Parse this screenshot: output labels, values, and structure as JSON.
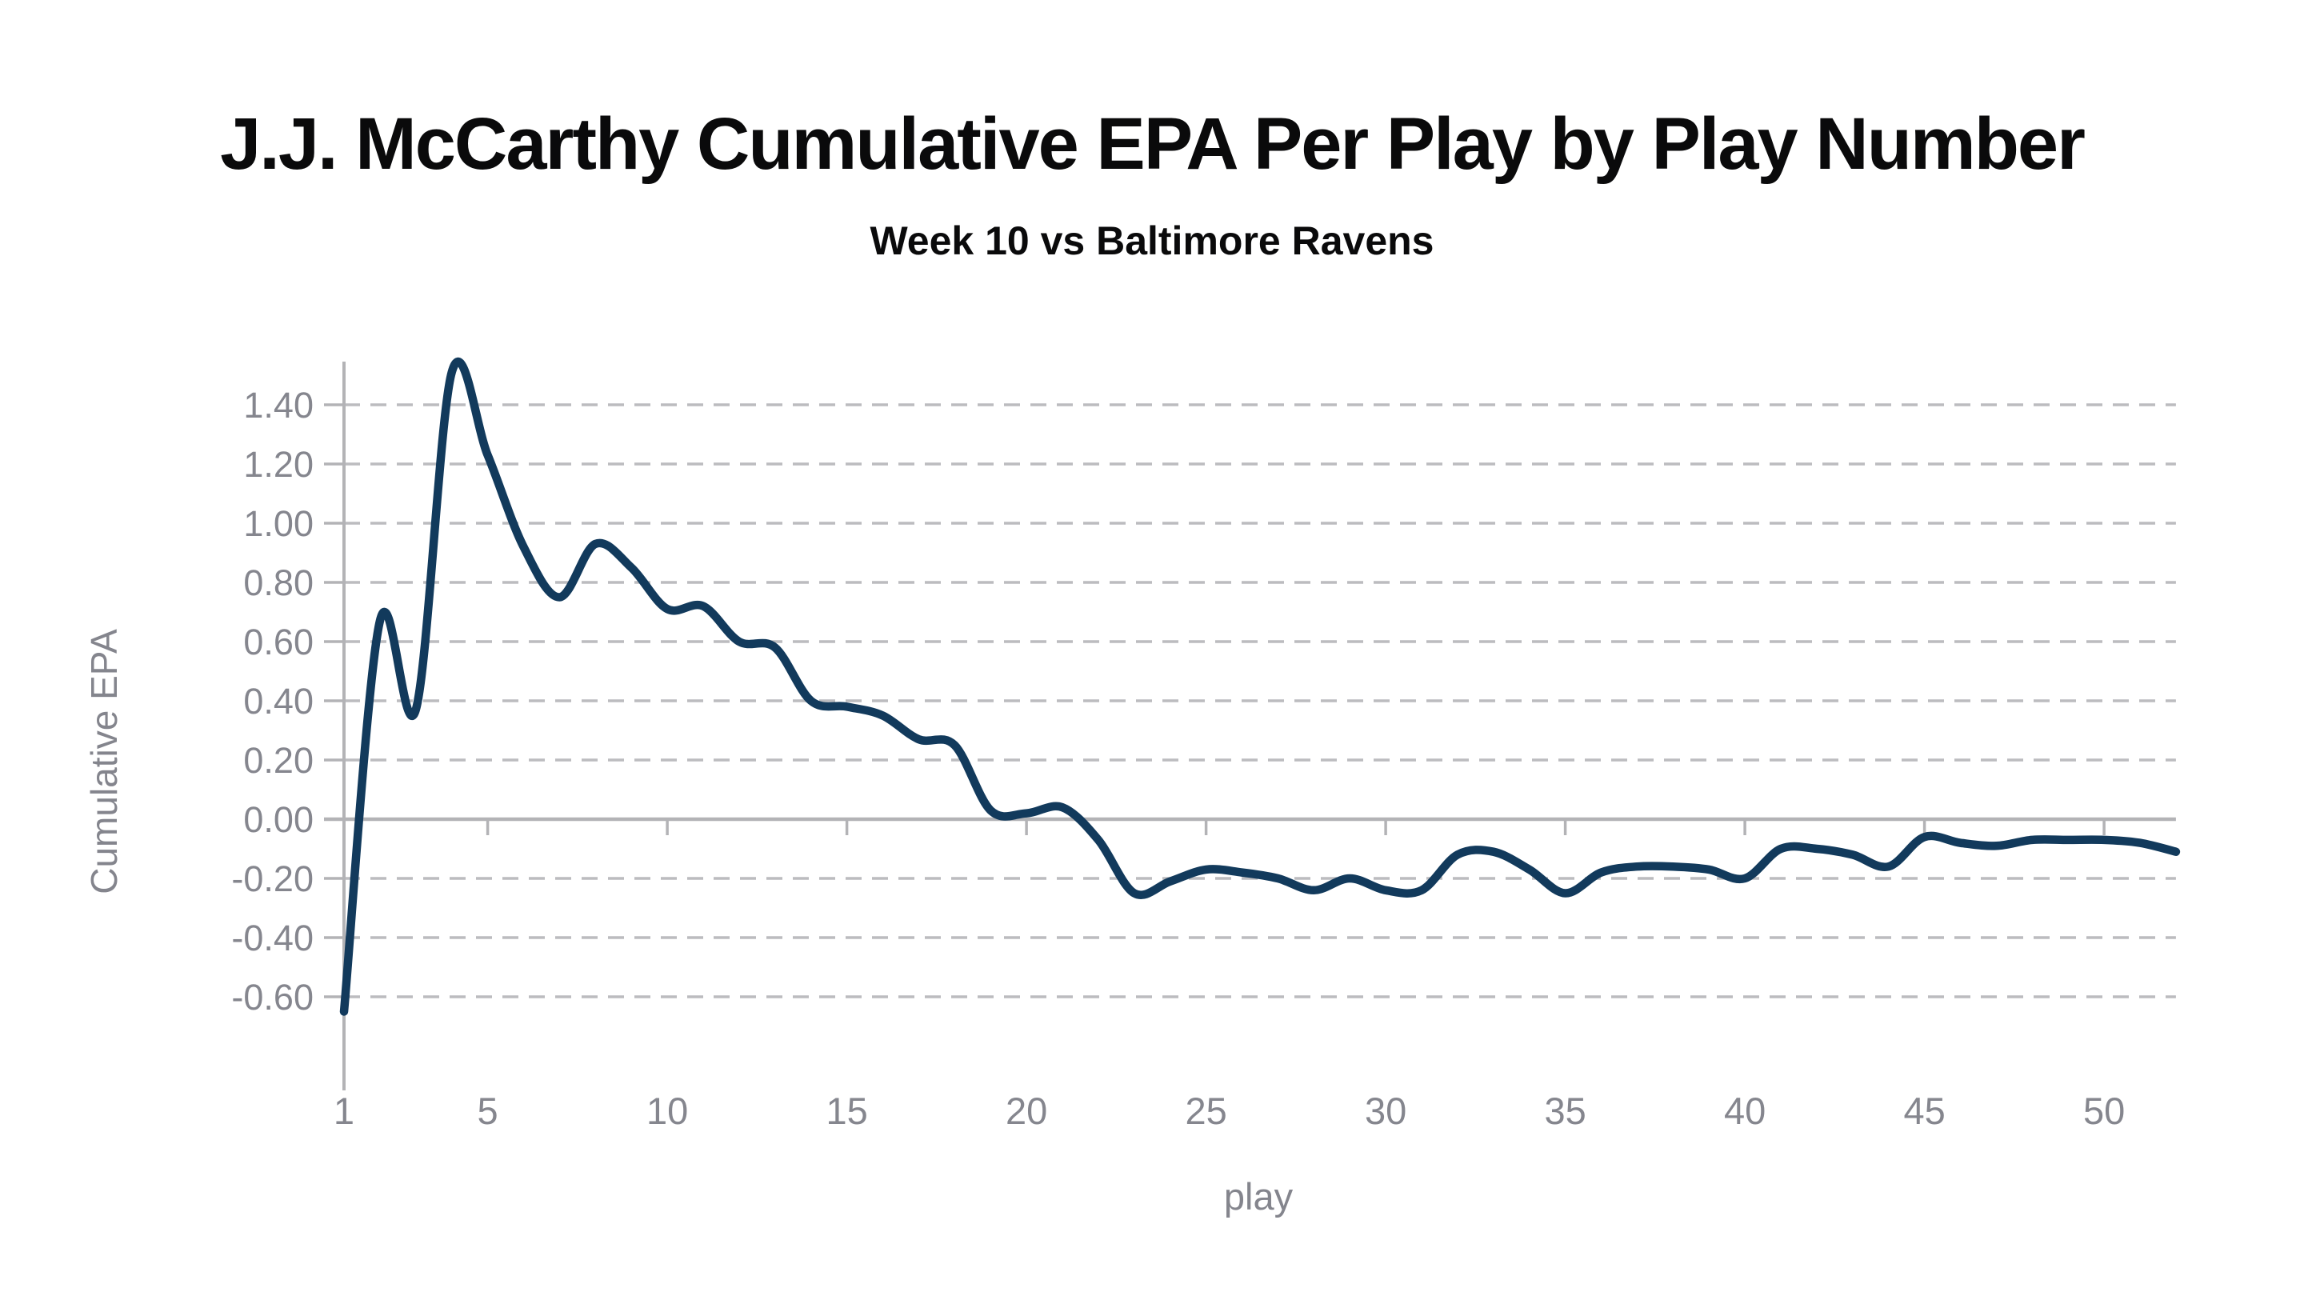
{
  "header": {
    "title": "J.J. McCarthy Cumulative EPA Per Play by Play Number",
    "subtitle": "Week 10 vs Baltimore Ravens"
  },
  "chart_data": {
    "type": "line",
    "title": "J.J. McCarthy Cumulative EPA Per Play by Play Number",
    "subtitle": "Week 10 vs Baltimore Ravens",
    "xlabel": "play",
    "ylabel": "Cumulative EPA",
    "series": [
      {
        "name": "Cumulative EPA",
        "x": [
          1,
          2,
          3,
          4,
          5,
          6,
          7,
          8,
          9,
          10,
          11,
          12,
          13,
          14,
          15,
          16,
          17,
          18,
          19,
          20,
          21,
          22,
          23,
          24,
          25,
          26,
          27,
          28,
          29,
          30,
          31,
          32,
          33,
          34,
          35,
          36,
          37,
          38,
          39,
          40,
          41,
          42,
          43,
          44,
          45,
          46,
          47,
          48,
          49,
          50,
          51,
          52
        ],
        "y": [
          -0.65,
          0.67,
          0.37,
          1.51,
          1.23,
          0.92,
          0.75,
          0.93,
          0.85,
          0.71,
          0.72,
          0.6,
          0.58,
          0.4,
          0.38,
          0.35,
          0.27,
          0.25,
          0.03,
          0.02,
          0.04,
          -0.07,
          -0.25,
          -0.21,
          -0.17,
          -0.18,
          -0.2,
          -0.24,
          -0.2,
          -0.24,
          -0.24,
          -0.12,
          -0.11,
          -0.17,
          -0.25,
          -0.18,
          -0.16,
          -0.16,
          -0.17,
          -0.2,
          -0.1,
          -0.1,
          -0.12,
          -0.16,
          -0.06,
          -0.08,
          -0.09,
          -0.07,
          -0.07,
          -0.07,
          -0.08,
          -0.11
        ]
      }
    ],
    "xlim": [
      1,
      52
    ],
    "ylim": [
      -0.72,
      1.56
    ],
    "x_ticks": [
      {
        "value": 1,
        "label": "1"
      },
      {
        "value": 5,
        "label": "5"
      },
      {
        "value": 10,
        "label": "10"
      },
      {
        "value": 15,
        "label": "15"
      },
      {
        "value": 20,
        "label": "20"
      },
      {
        "value": 25,
        "label": "25"
      },
      {
        "value": 30,
        "label": "30"
      },
      {
        "value": 35,
        "label": "35"
      },
      {
        "value": 40,
        "label": "40"
      },
      {
        "value": 45,
        "label": "45"
      },
      {
        "value": 50,
        "label": "50"
      }
    ],
    "y_ticks": [
      {
        "value": 1.4,
        "label": "1.40"
      },
      {
        "value": 1.2,
        "label": "1.20"
      },
      {
        "value": 1.0,
        "label": "1.00"
      },
      {
        "value": 0.8,
        "label": "0.80"
      },
      {
        "value": 0.6,
        "label": "0.60"
      },
      {
        "value": 0.4,
        "label": "0.40"
      },
      {
        "value": 0.2,
        "label": "0.20"
      },
      {
        "value": 0.0,
        "label": "0.00"
      },
      {
        "value": -0.2,
        "label": "-0.20"
      },
      {
        "value": -0.4,
        "label": "-0.40"
      },
      {
        "value": -0.6,
        "label": "-0.60"
      }
    ],
    "zero_line_value": 0.0,
    "grid": "horizontal-dashed",
    "legend": "none",
    "colors": {
      "line": "#123a5c",
      "grid": "#bcbcbf",
      "axis": "#b3b3b6",
      "tick_label": "#85868e",
      "title": "#0a0a0b"
    }
  }
}
